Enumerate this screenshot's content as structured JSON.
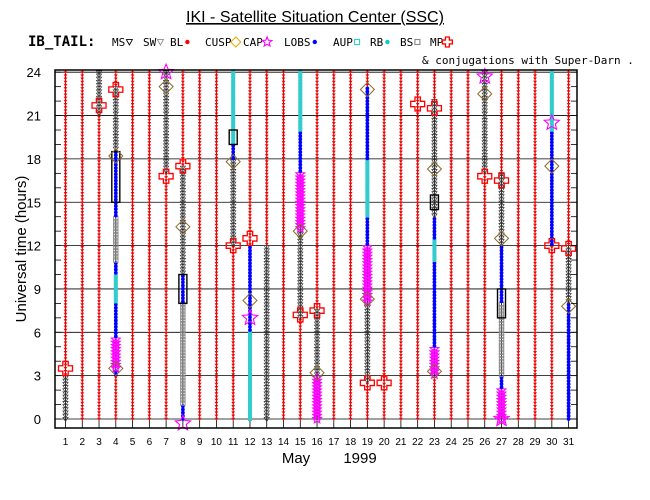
{
  "header": {
    "title": "IKI - Satellite Situation Center (SSC)",
    "legend_label": "IB_TAIL:",
    "legend_items": [
      {
        "label": "MS",
        "marker": "triangle-down",
        "color": "#000000"
      },
      {
        "label": "SW",
        "marker": "triangle-down",
        "color": "#888888"
      },
      {
        "label": "BL",
        "marker": "dot",
        "color": "#ff0000"
      },
      {
        "label": "CUSP",
        "marker": "diamond",
        "color": "#e8a800"
      },
      {
        "label": "CAP",
        "marker": "star",
        "color": "#ff00ff"
      },
      {
        "label": "LOBS",
        "marker": "dot",
        "color": "#0000ff"
      },
      {
        "label": "AUP",
        "marker": "square",
        "color": "#33cccc"
      },
      {
        "label": "RB",
        "marker": "dot",
        "color": "#00cccc"
      },
      {
        "label": "BS",
        "marker": "square",
        "color": "#888888"
      },
      {
        "label": "MP",
        "marker": "cross",
        "color": "#ff0000"
      }
    ],
    "conj_note": "& conjugations with Super-Darn ."
  },
  "chart_data": {
    "type": "scatter",
    "xlabel_month": "May",
    "xlabel_year": "1999",
    "ylabel": "Universal time (hours)",
    "xlim": [
      0.5,
      32
    ],
    "ylim": [
      -1,
      25
    ],
    "x_ticks": [
      1,
      2,
      3,
      4,
      5,
      6,
      7,
      8,
      9,
      10,
      11,
      12,
      13,
      14,
      15,
      16,
      17,
      18,
      19,
      20,
      21,
      22,
      23,
      24,
      25,
      26,
      27,
      28,
      29,
      30,
      31
    ],
    "y_ticks": [
      0,
      3,
      6,
      9,
      12,
      15,
      18,
      21,
      24
    ],
    "grid": true,
    "colors": {
      "bl": "#ff0000",
      "lobs": "#0000ff",
      "ms": "#333333",
      "cusp": "#e8a800",
      "cap": "#ff00ff",
      "aup": "#33cccc",
      "bs": "#888888",
      "mp": "#ff0000",
      "conj": "#000000"
    },
    "region_segments": [
      {
        "day": 1,
        "from": 0,
        "to": 3,
        "region": "ms"
      },
      {
        "day": 3,
        "from": 21,
        "to": 24,
        "region": "ms"
      },
      {
        "day": 4,
        "from": 3,
        "to": 18.5,
        "region": "lobs"
      },
      {
        "day": 4,
        "from": 18.5,
        "to": 23,
        "region": "ms"
      },
      {
        "day": 4,
        "from": 3.5,
        "to": 5.5,
        "region": "cap"
      },
      {
        "day": 4,
        "from": 8,
        "to": 10,
        "region": "aup"
      },
      {
        "day": 4,
        "from": 11,
        "to": 14,
        "region": "bs"
      },
      {
        "day": 7,
        "from": 17,
        "to": 24,
        "region": "ms"
      },
      {
        "day": 8,
        "from": 0,
        "to": 10,
        "region": "lobs"
      },
      {
        "day": 8,
        "from": 10,
        "to": 17.5,
        "region": "ms"
      },
      {
        "day": 8,
        "from": 1,
        "to": 8,
        "region": "bs"
      },
      {
        "day": 11,
        "from": 12,
        "to": 18,
        "region": "ms"
      },
      {
        "day": 11,
        "from": 18,
        "to": 23,
        "region": "lobs"
      },
      {
        "day": 11,
        "from": 19,
        "to": 24,
        "region": "aup"
      },
      {
        "day": 12,
        "from": 0,
        "to": 12,
        "region": "lobs"
      },
      {
        "day": 12,
        "from": 0,
        "to": 6,
        "region": "aup"
      },
      {
        "day": 13,
        "from": 0,
        "to": 12,
        "region": "ms"
      },
      {
        "day": 15,
        "from": 7,
        "to": 13,
        "region": "ms"
      },
      {
        "day": 15,
        "from": 13,
        "to": 17,
        "region": "cap"
      },
      {
        "day": 15,
        "from": 17,
        "to": 24,
        "region": "lobs"
      },
      {
        "day": 15,
        "from": 20,
        "to": 24,
        "region": "aup"
      },
      {
        "day": 16,
        "from": 0,
        "to": 3,
        "region": "cap"
      },
      {
        "day": 16,
        "from": 3,
        "to": 7.5,
        "region": "ms"
      },
      {
        "day": 19,
        "from": 2.5,
        "to": 8,
        "region": "ms"
      },
      {
        "day": 19,
        "from": 8,
        "to": 12,
        "region": "cap"
      },
      {
        "day": 19,
        "from": 12,
        "to": 23,
        "region": "lobs"
      },
      {
        "day": 19,
        "from": 14,
        "to": 18,
        "region": "aup"
      },
      {
        "day": 23,
        "from": 3,
        "to": 5,
        "region": "cap"
      },
      {
        "day": 23,
        "from": 5,
        "to": 14,
        "region": "lobs"
      },
      {
        "day": 23,
        "from": 14,
        "to": 22,
        "region": "ms"
      },
      {
        "day": 23,
        "from": 11,
        "to": 12.5,
        "region": "aup"
      },
      {
        "day": 26,
        "from": 17,
        "to": 24,
        "region": "ms"
      },
      {
        "day": 27,
        "from": 0,
        "to": 2,
        "region": "cap"
      },
      {
        "day": 27,
        "from": 2,
        "to": 12,
        "region": "lobs"
      },
      {
        "day": 27,
        "from": 12,
        "to": 17,
        "region": "ms"
      },
      {
        "day": 27,
        "from": 3,
        "to": 8,
        "region": "bs"
      },
      {
        "day": 30,
        "from": 12,
        "to": 24,
        "region": "lobs"
      },
      {
        "day": 30,
        "from": 20,
        "to": 24,
        "region": "aup"
      },
      {
        "day": 31,
        "from": 0,
        "to": 8,
        "region": "lobs"
      },
      {
        "day": 31,
        "from": 8,
        "to": 12,
        "region": "ms"
      }
    ],
    "mp_crossings": [
      {
        "day": 1,
        "ut": 3.5
      },
      {
        "day": 3,
        "ut": 21.7
      },
      {
        "day": 4,
        "ut": 22.8
      },
      {
        "day": 7,
        "ut": 16.8
      },
      {
        "day": 8,
        "ut": 17.5
      },
      {
        "day": 11,
        "ut": 12
      },
      {
        "day": 12,
        "ut": 12.5
      },
      {
        "day": 15,
        "ut": 7.2
      },
      {
        "day": 16,
        "ut": 7.5
      },
      {
        "day": 19,
        "ut": 2.5
      },
      {
        "day": 20,
        "ut": 2.5
      },
      {
        "day": 22,
        "ut": 21.8
      },
      {
        "day": 23,
        "ut": 21.5
      },
      {
        "day": 26,
        "ut": 16.8
      },
      {
        "day": 27,
        "ut": 16.5
      },
      {
        "day": 30,
        "ut": 12
      },
      {
        "day": 31,
        "ut": 11.8
      }
    ],
    "cusp_crossings": [
      {
        "day": 4,
        "ut": 18.2
      },
      {
        "day": 4,
        "ut": 3.5
      },
      {
        "day": 7,
        "ut": 23
      },
      {
        "day": 8,
        "ut": 13.3
      },
      {
        "day": 11,
        "ut": 17.8
      },
      {
        "day": 12,
        "ut": 8.2
      },
      {
        "day": 15,
        "ut": 13
      },
      {
        "day": 16,
        "ut": 3.2
      },
      {
        "day": 19,
        "ut": 8.3
      },
      {
        "day": 19,
        "ut": 22.8
      },
      {
        "day": 23,
        "ut": 17.3
      },
      {
        "day": 23,
        "ut": 3.3
      },
      {
        "day": 26,
        "ut": 22.5
      },
      {
        "day": 27,
        "ut": 12.5
      },
      {
        "day": 30,
        "ut": 17.5
      },
      {
        "day": 31,
        "ut": 7.8
      }
    ],
    "cap_points": [
      {
        "day": 7,
        "ut": 24
      },
      {
        "day": 8,
        "ut": -0.3
      },
      {
        "day": 12,
        "ut": 7
      },
      {
        "day": 26,
        "ut": 23.7
      },
      {
        "day": 27,
        "ut": 0
      },
      {
        "day": 30,
        "ut": 20.5
      }
    ],
    "conj_boxes": [
      {
        "day": 4,
        "from": 15,
        "to": 18.5
      },
      {
        "day": 8,
        "from": 8,
        "to": 10
      },
      {
        "day": 11,
        "from": 19,
        "to": 20
      },
      {
        "day": 23,
        "from": 14.5,
        "to": 15.5
      },
      {
        "day": 27,
        "from": 7,
        "to": 9
      }
    ]
  }
}
